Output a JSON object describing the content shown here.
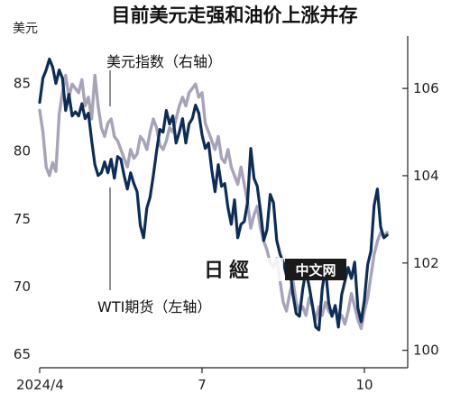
{
  "chart_data": {
    "type": "line",
    "title": "目前美元走强和油价上涨并存",
    "left_axis": {
      "unit": "美元",
      "ticks": [
        65,
        70,
        75,
        80,
        85
      ],
      "range": [
        64,
        88.5
      ]
    },
    "right_axis": {
      "ticks": [
        100,
        102,
        104,
        106
      ],
      "range": [
        99.6,
        107.2
      ]
    },
    "x_ticks": [
      {
        "label": "2024/4",
        "t": 0.0
      },
      {
        "label": "7",
        "t": 3.0
      },
      {
        "label": "10",
        "t": 6.0
      }
    ],
    "series": [
      {
        "name": "WTI期货（左轴）",
        "axis": "left",
        "color": "#0b2d57",
        "points": [
          [
            0.0,
            83.6
          ],
          [
            0.06,
            85.4
          ],
          [
            0.12,
            86.0
          ],
          [
            0.18,
            86.8
          ],
          [
            0.24,
            86.2
          ],
          [
            0.3,
            85.0
          ],
          [
            0.36,
            86.0
          ],
          [
            0.42,
            85.4
          ],
          [
            0.48,
            83.0
          ],
          [
            0.54,
            84.2
          ],
          [
            0.6,
            82.6
          ],
          [
            0.66,
            82.9
          ],
          [
            0.72,
            82.6
          ],
          [
            0.78,
            83.5
          ],
          [
            0.84,
            82.4
          ],
          [
            0.9,
            82.8
          ],
          [
            0.96,
            80.8
          ],
          [
            1.02,
            79.0
          ],
          [
            1.08,
            78.2
          ],
          [
            1.14,
            78.4
          ],
          [
            1.2,
            79.2
          ],
          [
            1.26,
            78.4
          ],
          [
            1.32,
            79.4
          ],
          [
            1.38,
            78.0
          ],
          [
            1.44,
            79.6
          ],
          [
            1.5,
            79.4
          ],
          [
            1.56,
            78.2
          ],
          [
            1.62,
            77.2
          ],
          [
            1.68,
            78.4
          ],
          [
            1.74,
            77.6
          ],
          [
            1.8,
            77.0
          ],
          [
            1.86,
            74.5
          ],
          [
            1.92,
            73.6
          ],
          [
            1.98,
            75.8
          ],
          [
            2.04,
            76.6
          ],
          [
            2.1,
            78.2
          ],
          [
            2.16,
            80.0
          ],
          [
            2.22,
            81.6
          ],
          [
            2.28,
            81.4
          ],
          [
            2.34,
            83.0
          ],
          [
            2.4,
            82.0
          ],
          [
            2.46,
            82.6
          ],
          [
            2.52,
            80.6
          ],
          [
            2.58,
            81.4
          ],
          [
            2.64,
            82.4
          ],
          [
            2.7,
            80.6
          ],
          [
            2.76,
            82.0
          ],
          [
            2.82,
            82.4
          ],
          [
            2.88,
            83.4
          ],
          [
            2.94,
            82.8
          ],
          [
            3.0,
            81.2
          ],
          [
            3.06,
            80.2
          ],
          [
            3.12,
            80.6
          ],
          [
            3.18,
            78.6
          ],
          [
            3.24,
            77.0
          ],
          [
            3.3,
            79.0
          ],
          [
            3.36,
            77.4
          ],
          [
            3.42,
            77.6
          ],
          [
            3.48,
            75.8
          ],
          [
            3.54,
            74.6
          ],
          [
            3.6,
            76.4
          ],
          [
            3.66,
            73.6
          ],
          [
            3.72,
            74.6
          ],
          [
            3.78,
            74.8
          ],
          [
            3.84,
            76.2
          ],
          [
            3.9,
            80.2
          ],
          [
            3.96,
            78.0
          ],
          [
            4.02,
            77.4
          ],
          [
            4.08,
            75.6
          ],
          [
            4.14,
            73.4
          ],
          [
            4.2,
            74.2
          ],
          [
            4.26,
            76.8
          ],
          [
            4.32,
            76.2
          ],
          [
            4.38,
            73.4
          ],
          [
            4.44,
            72.4
          ],
          [
            4.5,
            71.8
          ],
          [
            4.56,
            70.8
          ],
          [
            4.62,
            71.4
          ],
          [
            4.68,
            69.4
          ],
          [
            4.74,
            68.0
          ],
          [
            4.8,
            67.8
          ],
          [
            4.86,
            69.8
          ],
          [
            4.92,
            71.2
          ],
          [
            4.98,
            70.0
          ],
          [
            5.04,
            68.6
          ],
          [
            5.1,
            67.0
          ],
          [
            5.16,
            66.8
          ],
          [
            5.22,
            69.8
          ],
          [
            5.28,
            71.4
          ],
          [
            5.34,
            68.8
          ],
          [
            5.4,
            67.8
          ],
          [
            5.46,
            68.6
          ],
          [
            5.52,
            67.0
          ],
          [
            5.58,
            69.4
          ],
          [
            5.64,
            70.4
          ],
          [
            5.7,
            71.4
          ],
          [
            5.76,
            70.6
          ],
          [
            5.82,
            71.8
          ],
          [
            5.88,
            68.4
          ],
          [
            5.94,
            67.4
          ],
          [
            6.0,
            69.0
          ],
          [
            6.06,
            71.6
          ],
          [
            6.12,
            72.6
          ],
          [
            6.18,
            76.0
          ],
          [
            6.24,
            77.2
          ],
          [
            6.3,
            74.4
          ],
          [
            6.36,
            73.6
          ],
          [
            6.42,
            73.8
          ]
        ]
      },
      {
        "name": "美元指数（右轴）",
        "axis": "right",
        "color": "#a7a4ba",
        "points": [
          [
            0.0,
            105.5
          ],
          [
            0.06,
            105.0
          ],
          [
            0.12,
            104.2
          ],
          [
            0.18,
            104.0
          ],
          [
            0.24,
            104.3
          ],
          [
            0.3,
            104.1
          ],
          [
            0.36,
            105.4
          ],
          [
            0.42,
            105.9
          ],
          [
            0.48,
            106.3
          ],
          [
            0.54,
            105.8
          ],
          [
            0.6,
            106.1
          ],
          [
            0.66,
            106.0
          ],
          [
            0.72,
            105.9
          ],
          [
            0.78,
            106.2
          ],
          [
            0.84,
            105.6
          ],
          [
            0.9,
            105.8
          ],
          [
            0.96,
            105.3
          ],
          [
            1.02,
            106.3
          ],
          [
            1.08,
            105.6
          ],
          [
            1.14,
            105.1
          ],
          [
            1.2,
            104.9
          ],
          [
            1.26,
            105.2
          ],
          [
            1.32,
            105.3
          ],
          [
            1.38,
            104.9
          ],
          [
            1.44,
            104.8
          ],
          [
            1.5,
            104.6
          ],
          [
            1.56,
            104.4
          ],
          [
            1.62,
            104.2
          ],
          [
            1.68,
            104.6
          ],
          [
            1.74,
            104.4
          ],
          [
            1.8,
            104.5
          ],
          [
            1.86,
            104.9
          ],
          [
            1.92,
            104.8
          ],
          [
            1.98,
            104.6
          ],
          [
            2.04,
            105.0
          ],
          [
            2.1,
            105.3
          ],
          [
            2.16,
            105.1
          ],
          [
            2.22,
            104.7
          ],
          [
            2.28,
            104.6
          ],
          [
            2.34,
            104.8
          ],
          [
            2.4,
            105.1
          ],
          [
            2.46,
            105.0
          ],
          [
            2.52,
            105.3
          ],
          [
            2.58,
            105.6
          ],
          [
            2.64,
            105.8
          ],
          [
            2.7,
            105.6
          ],
          [
            2.76,
            105.9
          ],
          [
            2.82,
            106.0
          ],
          [
            2.88,
            106.1
          ],
          [
            2.94,
            105.8
          ],
          [
            3.0,
            105.9
          ],
          [
            3.06,
            105.2
          ],
          [
            3.12,
            105.0
          ],
          [
            3.18,
            104.8
          ],
          [
            3.24,
            104.6
          ],
          [
            3.3,
            104.9
          ],
          [
            3.36,
            104.4
          ],
          [
            3.42,
            104.3
          ],
          [
            3.48,
            104.6
          ],
          [
            3.54,
            104.2
          ],
          [
            3.6,
            104.0
          ],
          [
            3.66,
            103.8
          ],
          [
            3.72,
            104.2
          ],
          [
            3.78,
            103.8
          ],
          [
            3.84,
            103.4
          ],
          [
            3.9,
            102.8
          ],
          [
            3.96,
            103.1
          ],
          [
            4.02,
            103.3
          ],
          [
            4.08,
            102.8
          ],
          [
            4.14,
            102.5
          ],
          [
            4.2,
            102.3
          ],
          [
            4.26,
            102.0
          ],
          [
            4.32,
            101.9
          ],
          [
            4.38,
            102.1
          ],
          [
            4.44,
            101.6
          ],
          [
            4.5,
            101.1
          ],
          [
            4.56,
            100.9
          ],
          [
            4.62,
            101.3
          ],
          [
            4.68,
            101.6
          ],
          [
            4.74,
            101.1
          ],
          [
            4.8,
            100.9
          ],
          [
            4.86,
            101.0
          ],
          [
            4.92,
            100.8
          ],
          [
            4.98,
            101.2
          ],
          [
            5.04,
            101.0
          ],
          [
            5.1,
            100.7
          ],
          [
            5.16,
            101.0
          ],
          [
            5.22,
            100.8
          ],
          [
            5.28,
            101.1
          ],
          [
            5.34,
            100.9
          ],
          [
            5.4,
            100.8
          ],
          [
            5.46,
            101.0
          ],
          [
            5.52,
            100.7
          ],
          [
            5.58,
            100.8
          ],
          [
            5.64,
            100.6
          ],
          [
            5.7,
            100.9
          ],
          [
            5.76,
            101.3
          ],
          [
            5.82,
            101.0
          ],
          [
            5.88,
            100.7
          ],
          [
            5.94,
            100.5
          ],
          [
            6.0,
            100.9
          ],
          [
            6.06,
            101.2
          ],
          [
            6.12,
            101.7
          ],
          [
            6.18,
            102.2
          ],
          [
            6.24,
            102.5
          ],
          [
            6.3,
            102.7
          ],
          [
            6.36,
            102.6
          ],
          [
            6.42,
            102.7
          ]
        ]
      }
    ],
    "callouts": [
      {
        "series": "right",
        "label": "美元指数（右轴）"
      },
      {
        "series": "left",
        "label": "WTI期货（左轴）"
      }
    ]
  },
  "watermark": {
    "logo": "日經",
    "text": "中文网"
  }
}
